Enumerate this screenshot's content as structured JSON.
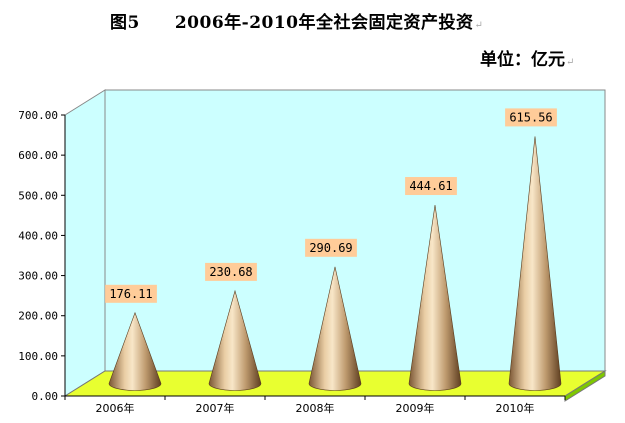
{
  "page": {
    "title": "图5　　2006年-2010年全社会固定资产投资",
    "unit": "单位：亿元",
    "para_mark": "↵"
  },
  "chart_data": {
    "type": "bar",
    "bar_shape": "cone-3d",
    "title": "图5　　2006年-2010年全社会固定资产投资",
    "xlabel": "",
    "ylabel": "",
    "categories": [
      "2006年",
      "2007年",
      "2008年",
      "2009年",
      "2010年"
    ],
    "values": [
      176.11,
      230.68,
      290.69,
      444.61,
      615.56
    ],
    "data_labels": [
      "176.11",
      "230.68",
      "290.69",
      "444.61",
      "615.56"
    ],
    "yticks": [
      "0.00",
      "100.00",
      "200.00",
      "300.00",
      "400.00",
      "500.00",
      "600.00",
      "700.00"
    ],
    "ylim": [
      0,
      700
    ],
    "grid": false,
    "legend": "none",
    "colors": {
      "back_wall": "#ccffff",
      "floor_top": "#e8ff30",
      "floor_side": "#7ec800",
      "cone_light": "#f8e6c8",
      "cone_mid": "#c09c70",
      "cone_dark": "#6e4c2a",
      "label_bg": "#ffcc99"
    }
  }
}
